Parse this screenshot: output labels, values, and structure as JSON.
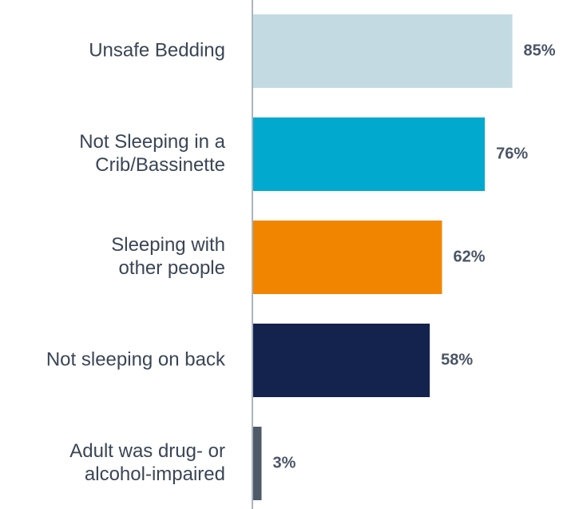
{
  "chart_data": {
    "type": "bar",
    "orientation": "horizontal",
    "categories": [
      [
        "Unsafe Bedding"
      ],
      [
        "Not Sleeping in a",
        "Crib/Bassinette"
      ],
      [
        "Sleeping with",
        "other people"
      ],
      [
        "Not sleeping on back"
      ],
      [
        "Adult was drug- or",
        "alcohol-impaired"
      ]
    ],
    "values": [
      85,
      76,
      62,
      58,
      3
    ],
    "value_labels": [
      "85%",
      "76%",
      "62%",
      "58%",
      "3%"
    ],
    "colors": [
      "#c3dae3",
      "#00a9cd",
      "#f28500",
      "#14234d",
      "#4f5a69"
    ],
    "xlim": [
      0,
      100
    ],
    "title": "",
    "xlabel": "",
    "ylabel": "",
    "grid": false,
    "legend": "none",
    "axis_color": "#a9b4bf"
  }
}
